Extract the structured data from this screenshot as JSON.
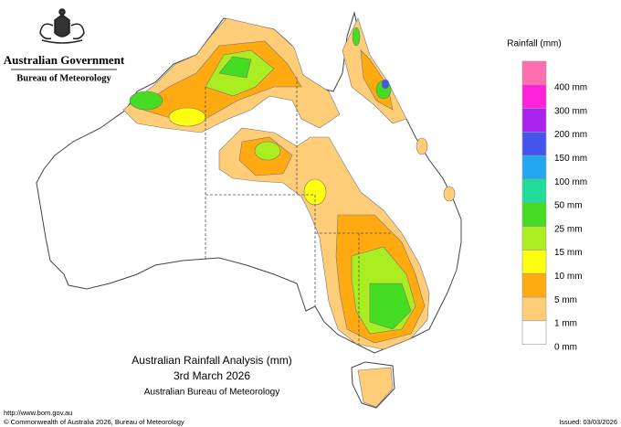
{
  "header": {
    "government": "Australian Government",
    "bureau": "Bureau of Meteorology"
  },
  "legend": {
    "title": "Rainfall (mm)",
    "items": [
      {
        "label": "400 mm",
        "color": "#ff6fb0"
      },
      {
        "label": "300 mm",
        "color": "#ff22dd"
      },
      {
        "label": "200 mm",
        "color": "#aa22ee"
      },
      {
        "label": "150 mm",
        "color": "#4455ee"
      },
      {
        "label": "100 mm",
        "color": "#22a8f0"
      },
      {
        "label": "50 mm",
        "color": "#22dd99"
      },
      {
        "label": "25 mm",
        "color": "#44dd22"
      },
      {
        "label": "15 mm",
        "color": "#aaee22"
      },
      {
        "label": "10 mm",
        "color": "#ffff11"
      },
      {
        "label": "5 mm",
        "color": "#ffaa11"
      },
      {
        "label": "1 mm",
        "color": "#ffcc77"
      },
      {
        "label": "0 mm",
        "color": "#ffffff"
      }
    ]
  },
  "map_title": {
    "lines": [
      "Australian Rainfall Analysis (mm)",
      "3rd March 2026",
      "Australian Bureau of Meteorology"
    ]
  },
  "footer": {
    "url": "http://www.bom.gov.au",
    "copyright": "© Commonwealth of Australia 2026, Bureau of Meteorology",
    "issued": "Issued: 03/03/2026"
  }
}
